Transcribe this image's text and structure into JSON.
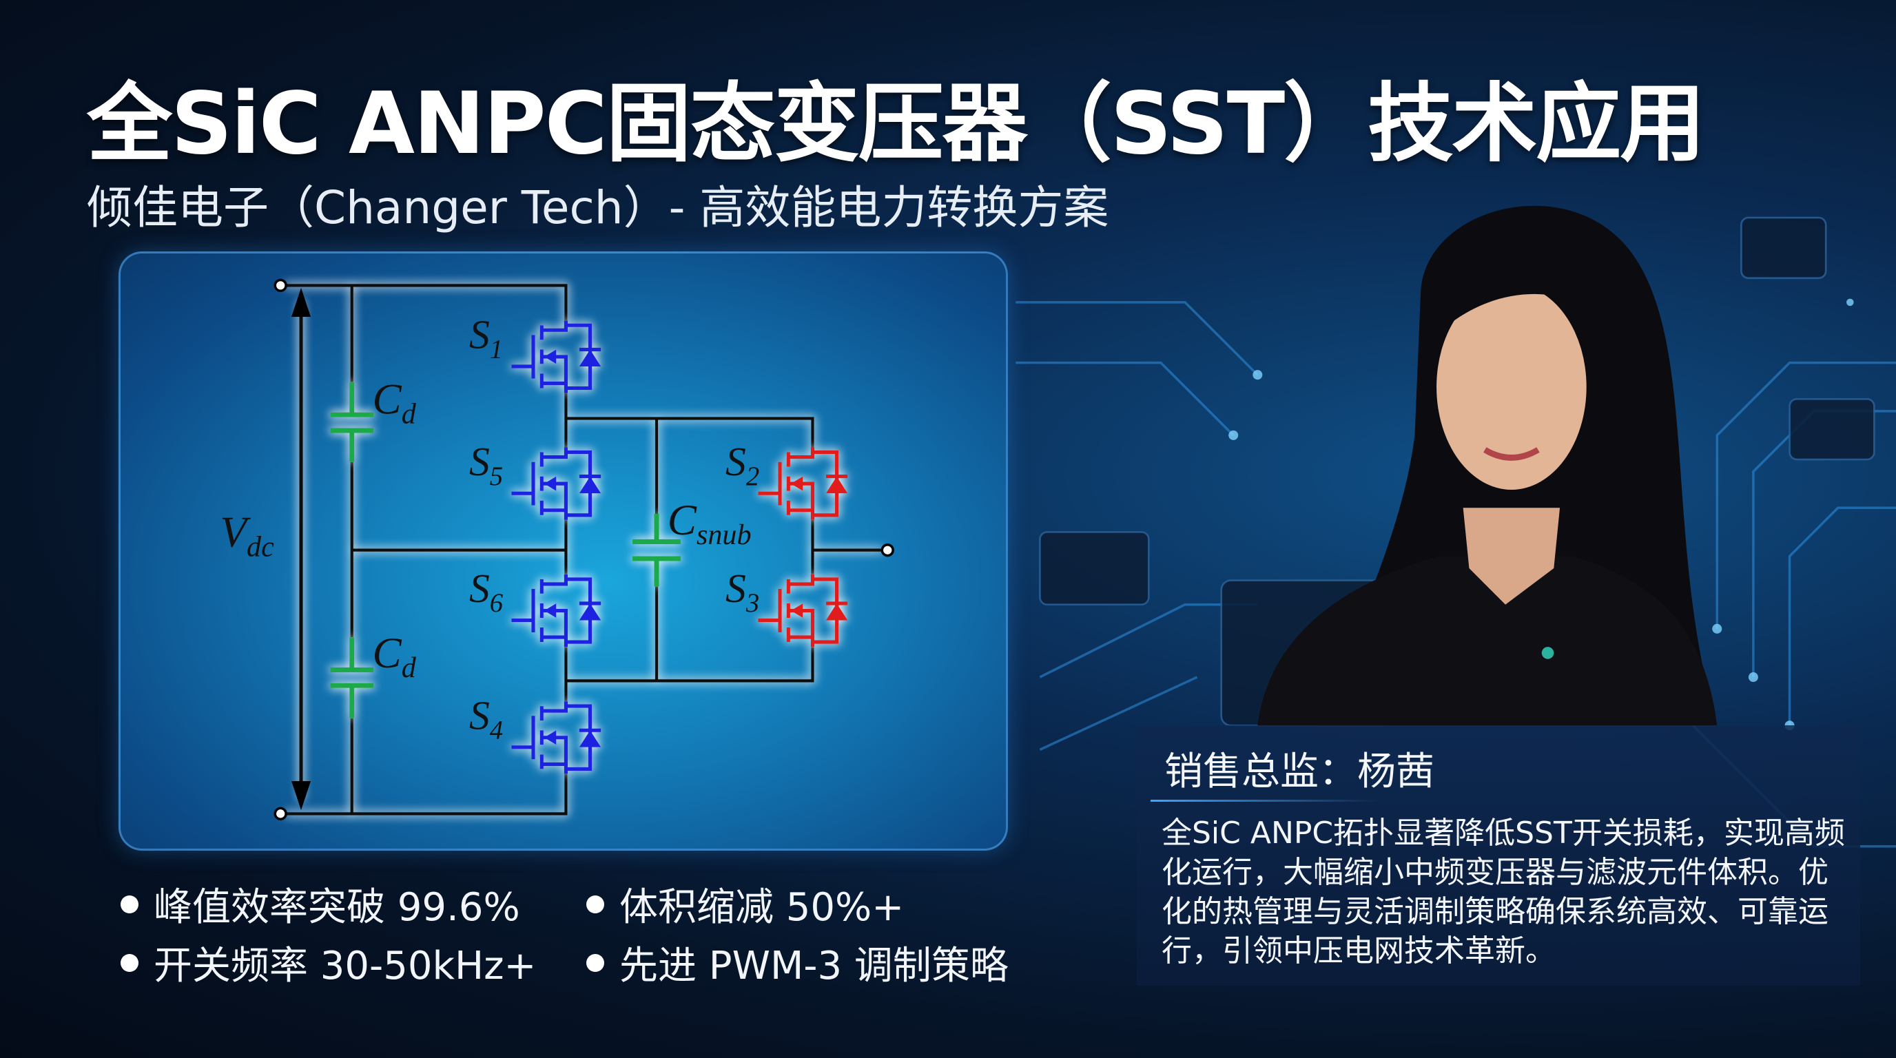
{
  "header": {
    "title": "全SiC ANPC固态变压器（SST）技术应用",
    "subtitle": "倾佳电子（Changer Tech）- 高效能电力转换方案"
  },
  "circuit": {
    "labels": {
      "vdc": "V",
      "vdc_sub": "dc",
      "cd_top": "C",
      "cd_top_sub": "d",
      "cd_bottom": "C",
      "cd_bottom_sub": "d",
      "csnub": "C",
      "csnub_sub": "snub",
      "s1": "S",
      "s1_sub": "1",
      "s5": "S",
      "s5_sub": "5",
      "s6": "S",
      "s6_sub": "6",
      "s4": "S",
      "s4_sub": "4",
      "s2": "S",
      "s2_sub": "2",
      "s3": "S",
      "s3_sub": "3"
    },
    "colors": {
      "outer_switch": "#1a22e0",
      "inner_switch": "#e01a1a",
      "capacitor": "#1faa4a",
      "wire": "#0a0a0a"
    }
  },
  "features": [
    "峰值效率突破 99.6%",
    "体积缩减 50%+",
    "开关频率 30-50kHz+",
    "先进 PWM-3 调制策略"
  ],
  "profile": {
    "name": "销售总监：杨茜",
    "description": "全SiC ANPC拓扑显著降低SST开关损耗，实现高频化运行，大幅缩小中频变压器与滤波元件体积。优化的热管理与灵活调制策略确保系统高效、可靠运行，引领中压电网技术革新。"
  }
}
